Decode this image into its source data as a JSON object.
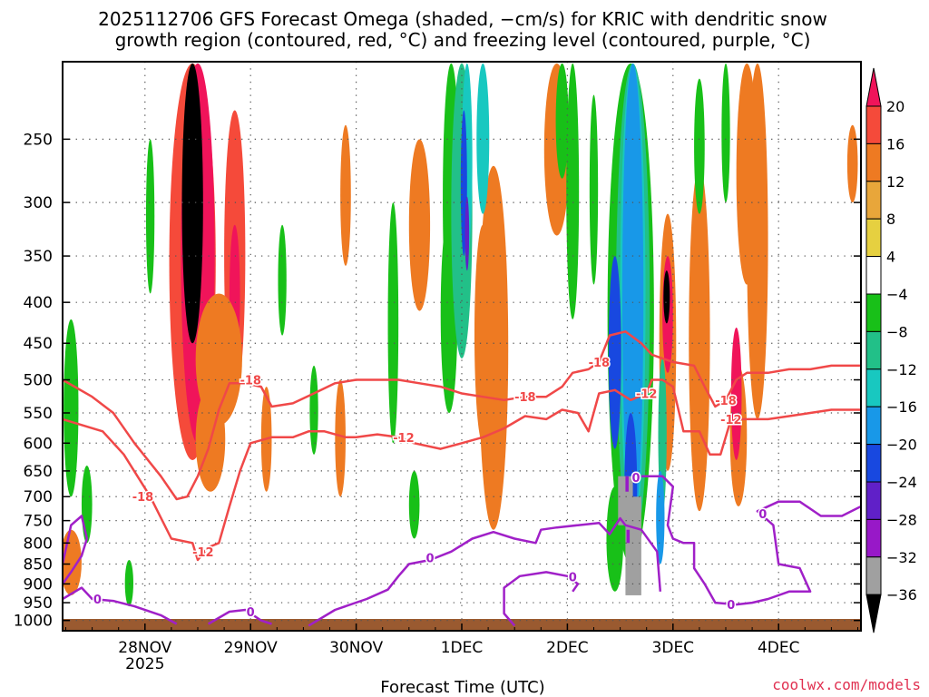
{
  "chart_data": {
    "type": "heatmap",
    "title_line1": "2025112706 GFS Forecast Omega (shaded, −cm/s) for KRIC with dendritic snow",
    "title_line2": "growth region (contoured, red, °C) and freezing level (contoured, purple, °C)",
    "xlabel": "Forecast Time (UTC)",
    "credit": "coolwx.com/models",
    "x_range_days": [
      -0.78,
      6.78
    ],
    "y_range_hpa": [
      200,
      1030
    ],
    "y_ticks": [
      "250",
      "300",
      "350",
      "400",
      "450",
      "500",
      "550",
      "600",
      "650",
      "700",
      "750",
      "800",
      "850",
      "900",
      "950",
      "1000"
    ],
    "x_ticks": [
      {
        "label": "28NOV",
        "sub": "2025"
      },
      {
        "label": "29NOV",
        "sub": ""
      },
      {
        "label": "30NOV",
        "sub": ""
      },
      {
        "label": "1DEC",
        "sub": ""
      },
      {
        "label": "2DEC",
        "sub": ""
      },
      {
        "label": "3DEC",
        "sub": ""
      },
      {
        "label": "4DEC",
        "sub": ""
      }
    ],
    "colorbar": {
      "labels": [
        "20",
        "16",
        "12",
        "8",
        "4",
        "−4",
        "−8",
        "−12",
        "−16",
        "−20",
        "−24",
        "−28",
        "−32",
        "−36"
      ],
      "colors": [
        "#f0145a",
        "#f54a3a",
        "#ee7a22",
        "#e8a63a",
        "#e6d040",
        "#ffffff",
        "#18c018",
        "#22c088",
        "#18c8c0",
        "#1898e8",
        "#1848e0",
        "#6020c8",
        "#9818c8",
        "#a0a0a0",
        "#000000"
      ]
    },
    "omega_blobs": [
      {
        "d": 0.45,
        "p": 350,
        "rd": 0.22,
        "rp": 280,
        "level": 4
      },
      {
        "d": 0.5,
        "p": 400,
        "rd": 0.16,
        "rp": 200,
        "level": 5
      },
      {
        "d": 0.45,
        "p": 320,
        "rd": 0.1,
        "rp": 130,
        "level": 6
      },
      {
        "d": 0.47,
        "p": 300,
        "rd": 0.05,
        "rp": 70,
        "level": 7
      },
      {
        "d": 0.85,
        "p": 380,
        "rd": 0.1,
        "rp": 150,
        "level": 4
      },
      {
        "d": 0.85,
        "p": 400,
        "rd": 0.05,
        "rp": 80,
        "level": 5
      },
      {
        "d": 0.7,
        "p": 480,
        "rd": 0.22,
        "rp": 90,
        "level": 3
      },
      {
        "d": 0.62,
        "p": 600,
        "rd": 0.14,
        "rp": 90,
        "level": 3
      },
      {
        "d": 1.15,
        "p": 600,
        "rd": 0.05,
        "rp": 90,
        "level": 3
      },
      {
        "d": 1.85,
        "p": 600,
        "rd": 0.05,
        "rp": 100,
        "level": 3
      },
      {
        "d": 3.3,
        "p": 520,
        "rd": 0.14,
        "rp": 250,
        "level": 3
      },
      {
        "d": 3.9,
        "p": 260,
        "rd": 0.12,
        "rp": 70,
        "level": 3
      },
      {
        "d": 4.95,
        "p": 480,
        "rd": 0.08,
        "rp": 170,
        "level": 3
      },
      {
        "d": 4.95,
        "p": 420,
        "rd": 0.05,
        "rp": 70,
        "level": 5
      },
      {
        "d": 4.94,
        "p": 395,
        "rd": 0.03,
        "rp": 30,
        "level": 7
      },
      {
        "d": 5.25,
        "p": 500,
        "rd": 0.1,
        "rp": 230,
        "level": 3
      },
      {
        "d": 5.62,
        "p": 600,
        "rd": 0.08,
        "rp": 120,
        "level": 3
      },
      {
        "d": 5.6,
        "p": 530,
        "rd": 0.05,
        "rp": 100,
        "level": 5
      },
      {
        "d": 5.8,
        "p": 380,
        "rd": 0.1,
        "rp": 180,
        "level": 3
      },
      {
        "d": 5.7,
        "p": 280,
        "rd": 0.1,
        "rp": 100,
        "level": 3
      },
      {
        "d": -0.7,
        "p": 850,
        "rd": 0.1,
        "rp": 80,
        "level": 3
      },
      {
        "d": 3.2,
        "p": 460,
        "rd": 0.08,
        "rp": 140,
        "level": 3
      },
      {
        "d": 2.6,
        "p": 330,
        "rd": 0.1,
        "rp": 80,
        "level": 3
      },
      {
        "d": 1.9,
        "p": 300,
        "rd": 0.05,
        "rp": 60,
        "level": 3
      },
      {
        "d": 6.7,
        "p": 270,
        "rd": 0.05,
        "rp": 30,
        "level": 3
      },
      {
        "d": -0.7,
        "p": 560,
        "rd": 0.07,
        "rp": 140,
        "level": -1
      },
      {
        "d": -0.55,
        "p": 720,
        "rd": 0.05,
        "rp": 80,
        "level": -1
      },
      {
        "d": -0.15,
        "p": 900,
        "rd": 0.04,
        "rp": 60,
        "level": -1
      },
      {
        "d": 0.05,
        "p": 320,
        "rd": 0.04,
        "rp": 70,
        "level": -1
      },
      {
        "d": 1.3,
        "p": 380,
        "rd": 0.04,
        "rp": 60,
        "level": -1
      },
      {
        "d": 1.6,
        "p": 550,
        "rd": 0.04,
        "rp": 70,
        "level": -1
      },
      {
        "d": 2.35,
        "p": 450,
        "rd": 0.05,
        "rp": 150,
        "level": -1
      },
      {
        "d": 2.55,
        "p": 720,
        "rd": 0.05,
        "rp": 70,
        "level": -1
      },
      {
        "d": 2.9,
        "p": 250,
        "rd": 0.08,
        "rp": 190,
        "level": -1
      },
      {
        "d": 2.88,
        "p": 430,
        "rd": 0.08,
        "rp": 120,
        "level": -1
      },
      {
        "d": 3.0,
        "p": 300,
        "rd": 0.1,
        "rp": 170,
        "level": -2
      },
      {
        "d": 3.05,
        "p": 260,
        "rd": 0.05,
        "rp": 90,
        "level": -3
      },
      {
        "d": 3.02,
        "p": 290,
        "rd": 0.03,
        "rp": 60,
        "level": -5
      },
      {
        "d": 3.05,
        "p": 330,
        "rd": 0.02,
        "rp": 35,
        "level": -6
      },
      {
        "d": 3.2,
        "p": 250,
        "rd": 0.06,
        "rp": 60,
        "level": -3
      },
      {
        "d": 3.95,
        "p": 220,
        "rd": 0.06,
        "rp": 60,
        "level": -1
      },
      {
        "d": 4.05,
        "p": 300,
        "rd": 0.06,
        "rp": 120,
        "level": -1
      },
      {
        "d": 4.25,
        "p": 300,
        "rd": 0.04,
        "rp": 80,
        "level": -1
      },
      {
        "d": 4.6,
        "p": 450,
        "rd": 0.22,
        "rp": 400,
        "level": -1
      },
      {
        "d": 4.62,
        "p": 450,
        "rd": 0.16,
        "rp": 360,
        "level": -2
      },
      {
        "d": 4.62,
        "p": 450,
        "rd": 0.12,
        "rp": 330,
        "level": -3
      },
      {
        "d": 4.62,
        "p": 480,
        "rd": 0.1,
        "rp": 290,
        "level": -4
      },
      {
        "d": 4.45,
        "p": 480,
        "rd": 0.06,
        "rp": 130,
        "level": -5
      },
      {
        "d": 4.6,
        "p": 700,
        "rd": 0.06,
        "rp": 150,
        "level": -5
      },
      {
        "d": 4.6,
        "p": 800,
        "rd": 0.05,
        "rp": 90,
        "level": -7
      },
      {
        "d": 4.45,
        "p": 800,
        "rd": 0.08,
        "rp": 120,
        "level": -1
      },
      {
        "d": 4.9,
        "p": 600,
        "rd": 0.04,
        "rp": 130,
        "level": -2
      },
      {
        "d": 4.88,
        "p": 750,
        "rd": 0.04,
        "rp": 100,
        "level": -4
      },
      {
        "d": 5.25,
        "p": 260,
        "rd": 0.05,
        "rp": 50,
        "level": -1
      },
      {
        "d": 5.5,
        "p": 250,
        "rd": 0.04,
        "rp": 50,
        "level": -1
      }
    ],
    "omega_rects": [
      {
        "d0": 4.48,
        "d1": 4.62,
        "p0": 660,
        "p1": 760,
        "level": -8
      },
      {
        "d0": 4.55,
        "d1": 4.7,
        "p0": 700,
        "p1": 930,
        "level": -8
      },
      {
        "d0": 4.55,
        "d1": 4.58,
        "p0": 660,
        "p1": 690,
        "level": -7
      },
      {
        "d0": 4.56,
        "d1": 4.59,
        "p0": 770,
        "p1": 800,
        "level": -7
      }
    ],
    "contours": [
      {
        "label": "-18",
        "color": "#f04848",
        "points": [
          [
            -0.78,
            500
          ],
          [
            -0.5,
            525
          ],
          [
            -0.3,
            550
          ],
          [
            -0.1,
            600
          ],
          [
            0.15,
            660
          ],
          [
            0.3,
            705
          ],
          [
            0.4,
            700
          ],
          [
            0.5,
            660
          ],
          [
            0.6,
            610
          ],
          [
            0.7,
            545
          ],
          [
            0.8,
            505
          ],
          [
            0.95,
            505
          ],
          [
            1.1,
            510
          ],
          [
            1.2,
            540
          ],
          [
            1.4,
            535
          ],
          [
            1.6,
            520
          ],
          [
            1.8,
            505
          ],
          [
            2.0,
            500
          ],
          [
            2.2,
            500
          ],
          [
            2.4,
            500
          ],
          [
            2.6,
            505
          ],
          [
            2.8,
            510
          ],
          [
            3.0,
            520
          ],
          [
            3.2,
            525
          ],
          [
            3.4,
            530
          ],
          [
            3.6,
            525
          ],
          [
            3.8,
            525
          ],
          [
            3.95,
            510
          ],
          [
            4.05,
            490
          ],
          [
            4.2,
            485
          ],
          [
            4.3,
            475
          ],
          [
            4.4,
            440
          ],
          [
            4.55,
            435
          ],
          [
            4.7,
            450
          ],
          [
            4.8,
            465
          ],
          [
            4.9,
            470
          ],
          [
            5.0,
            475
          ],
          [
            5.2,
            480
          ],
          [
            5.3,
            510
          ],
          [
            5.4,
            540
          ],
          [
            5.5,
            530
          ],
          [
            5.6,
            500
          ],
          [
            5.7,
            490
          ],
          [
            5.9,
            490
          ],
          [
            6.1,
            485
          ],
          [
            6.3,
            485
          ],
          [
            6.5,
            480
          ],
          [
            6.78,
            480
          ]
        ]
      },
      {
        "label": "-12",
        "color": "#f04848",
        "points": [
          [
            -0.78,
            560
          ],
          [
            -0.4,
            580
          ],
          [
            -0.2,
            620
          ],
          [
            0.05,
            700
          ],
          [
            0.25,
            790
          ],
          [
            0.45,
            800
          ],
          [
            0.5,
            840
          ],
          [
            0.6,
            810
          ],
          [
            0.7,
            800
          ],
          [
            0.8,
            720
          ],
          [
            0.9,
            650
          ],
          [
            1.0,
            600
          ],
          [
            1.2,
            590
          ],
          [
            1.4,
            590
          ],
          [
            1.55,
            580
          ],
          [
            1.7,
            580
          ],
          [
            1.9,
            590
          ],
          [
            2.0,
            590
          ],
          [
            2.2,
            585
          ],
          [
            2.4,
            590
          ],
          [
            2.55,
            600
          ],
          [
            2.8,
            610
          ],
          [
            3.0,
            600
          ],
          [
            3.2,
            590
          ],
          [
            3.4,
            575
          ],
          [
            3.6,
            555
          ],
          [
            3.8,
            560
          ],
          [
            3.95,
            545
          ],
          [
            4.1,
            550
          ],
          [
            4.2,
            580
          ],
          [
            4.3,
            520
          ],
          [
            4.45,
            515
          ],
          [
            4.6,
            530
          ],
          [
            4.75,
            520
          ],
          [
            4.8,
            500
          ],
          [
            4.9,
            500
          ],
          [
            5.0,
            510
          ],
          [
            5.1,
            580
          ],
          [
            5.25,
            580
          ],
          [
            5.35,
            620
          ],
          [
            5.45,
            620
          ],
          [
            5.55,
            560
          ],
          [
            5.7,
            560
          ],
          [
            5.9,
            560
          ],
          [
            6.1,
            555
          ],
          [
            6.3,
            550
          ],
          [
            6.5,
            545
          ],
          [
            6.78,
            545
          ]
        ]
      },
      {
        "label": "0",
        "color": "#a020c8",
        "points": [
          [
            -0.78,
            850
          ],
          [
            -0.7,
            760
          ],
          [
            -0.6,
            740
          ],
          [
            -0.55,
            790
          ],
          [
            -0.6,
            830
          ],
          [
            -0.7,
            870
          ],
          [
            -0.78,
            900
          ]
        ]
      },
      {
        "label": "0",
        "color": "#a020c8",
        "points": [
          [
            -0.78,
            940
          ],
          [
            -0.6,
            910
          ],
          [
            -0.5,
            940
          ],
          [
            -0.3,
            945
          ],
          [
            -0.1,
            960
          ],
          [
            0.15,
            985
          ],
          [
            0.3,
            1010
          ]
        ]
      },
      {
        "label": "0",
        "color": "#a020c8",
        "points": [
          [
            0.6,
            1010
          ],
          [
            0.8,
            975
          ],
          [
            0.95,
            970
          ],
          [
            1.1,
            1000
          ],
          [
            1.2,
            1010
          ]
        ]
      },
      {
        "label": "0",
        "color": "#a020c8",
        "points": [
          [
            1.55,
            1015
          ],
          [
            1.8,
            970
          ],
          [
            2.1,
            940
          ],
          [
            2.3,
            915
          ],
          [
            2.4,
            880
          ],
          [
            2.5,
            850
          ],
          [
            2.7,
            840
          ],
          [
            2.9,
            820
          ],
          [
            3.1,
            790
          ],
          [
            3.3,
            775
          ],
          [
            3.5,
            790
          ],
          [
            3.7,
            800
          ],
          [
            3.75,
            770
          ],
          [
            3.9,
            765
          ],
          [
            4.1,
            760
          ],
          [
            4.3,
            755
          ],
          [
            4.4,
            780
          ],
          [
            4.5,
            745
          ],
          [
            4.55,
            760
          ],
          [
            4.7,
            770
          ],
          [
            4.85,
            820
          ],
          [
            4.88,
            920
          ]
        ]
      },
      {
        "label": "0",
        "color": "#a020c8",
        "points": [
          [
            3.5,
            1015
          ],
          [
            3.4,
            980
          ],
          [
            3.4,
            910
          ],
          [
            3.55,
            880
          ],
          [
            3.8,
            870
          ],
          [
            4.0,
            880
          ],
          [
            4.1,
            900
          ],
          [
            4.05,
            920
          ]
        ]
      },
      {
        "label": "0",
        "color": "#a020c8",
        "points": [
          [
            4.7,
            660
          ],
          [
            4.9,
            660
          ],
          [
            5.0,
            680
          ],
          [
            4.95,
            760
          ],
          [
            5.0,
            790
          ],
          [
            5.1,
            800
          ],
          [
            5.2,
            800
          ],
          [
            5.2,
            860
          ],
          [
            5.3,
            900
          ],
          [
            5.4,
            950
          ],
          [
            5.6,
            955
          ],
          [
            5.75,
            950
          ],
          [
            5.9,
            940
          ],
          [
            6.1,
            920
          ],
          [
            6.3,
            920
          ],
          [
            6.2,
            860
          ],
          [
            6.0,
            850
          ],
          [
            5.95,
            760
          ],
          [
            5.8,
            730
          ],
          [
            6.0,
            710
          ],
          [
            6.2,
            710
          ],
          [
            6.4,
            740
          ],
          [
            6.6,
            740
          ],
          [
            6.78,
            720
          ]
        ]
      }
    ]
  }
}
